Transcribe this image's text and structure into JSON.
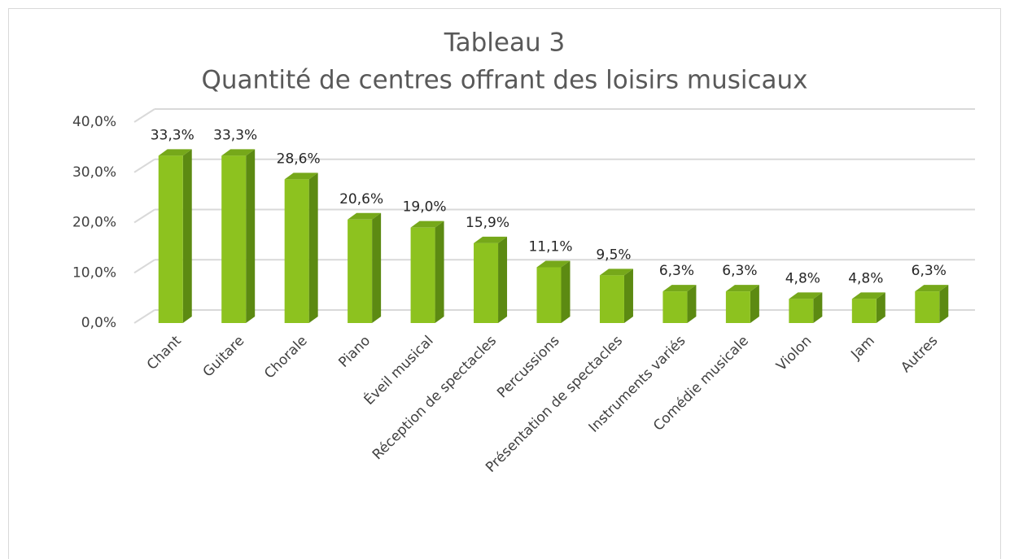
{
  "chart_data": {
    "type": "bar3d",
    "title": "Tableau 3",
    "subtitle": "Quantité de centres offrant des loisirs musicaux",
    "categories": [
      "Chant",
      "Guitare",
      "Chorale",
      "Piano",
      "Éveil musical",
      "Réception de spectacles",
      "Percussions",
      "Présentation de spectacles",
      "Instruments variés",
      "Comédie musicale",
      "Violon",
      "Jam",
      "Autres"
    ],
    "values": [
      33.3,
      33.3,
      28.6,
      20.6,
      19.0,
      15.9,
      11.1,
      9.5,
      6.3,
      6.3,
      4.8,
      4.8,
      6.3
    ],
    "value_labels": [
      "33,3%",
      "33,3%",
      "28,6%",
      "20,6%",
      "19,0%",
      "15,9%",
      "11,1%",
      "9,5%",
      "6,3%",
      "6,3%",
      "4,8%",
      "4,8%",
      "6,3%"
    ],
    "color": "#8dc21f",
    "ylim": [
      0,
      40
    ],
    "yticks": [
      {
        "value": 0,
        "label": "0,0%"
      },
      {
        "value": 10,
        "label": "10,0%"
      },
      {
        "value": 20,
        "label": "20,0%"
      },
      {
        "value": 30,
        "label": "30,0%"
      },
      {
        "value": 40,
        "label": "40,0%"
      }
    ],
    "grid": true
  }
}
